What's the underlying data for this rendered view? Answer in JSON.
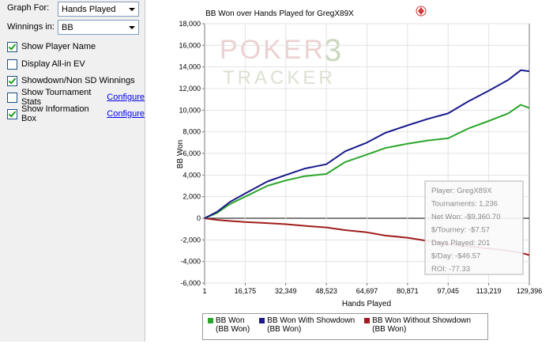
{
  "panel": {
    "graph_for_label": "Graph For:",
    "graph_for_value": "Hands Played",
    "winnings_in_label": "Winnings in:",
    "winnings_in_value": "BB",
    "options": [
      {
        "label": "Show Player Name",
        "checked": true,
        "link": ""
      },
      {
        "label": "Display All-in EV",
        "checked": false,
        "link": ""
      },
      {
        "label": "Showdown/Non SD Winnings",
        "checked": true,
        "link": ""
      },
      {
        "label": "Show Tournament Stats",
        "checked": false,
        "link": "Configure"
      },
      {
        "label": "Show Information Box",
        "checked": true,
        "link": "Configure"
      }
    ]
  },
  "watermark": {
    "line1": "POKER",
    "line2": "TRACKER",
    "mark": "3"
  },
  "info_box": {
    "lines": [
      "Player: GregX89X",
      "Tournaments: 1,236",
      "Net Won: -$9,360.70",
      "$/Tourney: -$7.57",
      "Days Played: 201",
      "$/Day: -$46.57",
      "ROI: -77.33"
    ]
  },
  "colors": {
    "bb_won": "#2aa52a",
    "with_showdown": "#1a1a8c",
    "without_showdown": "#a11d1d",
    "logo_icon": "#d23a3a"
  },
  "chart_data": {
    "type": "line",
    "title": "BB Won over Hands Played for GregX89X",
    "xlabel": "Hands Played",
    "ylabel": "BB Won",
    "xlim": [
      1,
      129396
    ],
    "ylim": [
      -6000,
      18000
    ],
    "grid": true,
    "x_ticks": [
      "1",
      "16,175",
      "32,349",
      "48,523",
      "64,697",
      "80,871",
      "97,045",
      "113,219",
      "129,396"
    ],
    "y_ticks": [
      "-6,000",
      "-4,000",
      "-2,000",
      "0",
      "2,000",
      "4,000",
      "6,000",
      "8,000",
      "10,000",
      "12,000",
      "14,000",
      "16,000",
      "18,000"
    ],
    "series": [
      {
        "name": "BB Won",
        "sub": "(BB Won)",
        "x": [
          1,
          5000,
          10000,
          16175,
          25000,
          32349,
          40000,
          48523,
          56000,
          64697,
          72000,
          80871,
          89000,
          97045,
          105000,
          113219,
          121000,
          126000,
          129396
        ],
        "y": [
          0,
          500,
          1300,
          2000,
          3000,
          3500,
          3900,
          4100,
          5200,
          5900,
          6500,
          6900,
          7200,
          7400,
          8300,
          9000,
          9700,
          10500,
          10200
        ]
      },
      {
        "name": "BB Won With Showdown",
        "sub": "(BB Won)",
        "x": [
          1,
          5000,
          10000,
          16175,
          25000,
          32349,
          40000,
          48523,
          56000,
          64697,
          72000,
          80871,
          89000,
          97045,
          105000,
          113219,
          121000,
          126000,
          129396
        ],
        "y": [
          0,
          600,
          1500,
          2300,
          3400,
          4000,
          4600,
          5000,
          6200,
          7000,
          7900,
          8600,
          9200,
          9700,
          10800,
          11800,
          12800,
          13700,
          13600
        ]
      },
      {
        "name": "BB Won Without Showdown",
        "sub": "(BB Won)",
        "x": [
          1,
          5000,
          10000,
          16175,
          25000,
          32349,
          40000,
          48523,
          56000,
          64697,
          72000,
          80871,
          89000,
          97045,
          105000,
          113219,
          121000,
          126000,
          129396
        ],
        "y": [
          0,
          -150,
          -250,
          -350,
          -450,
          -550,
          -700,
          -850,
          -1100,
          -1300,
          -1600,
          -1800,
          -2100,
          -2400,
          -2600,
          -2800,
          -3000,
          -3200,
          -3400
        ]
      }
    ]
  }
}
